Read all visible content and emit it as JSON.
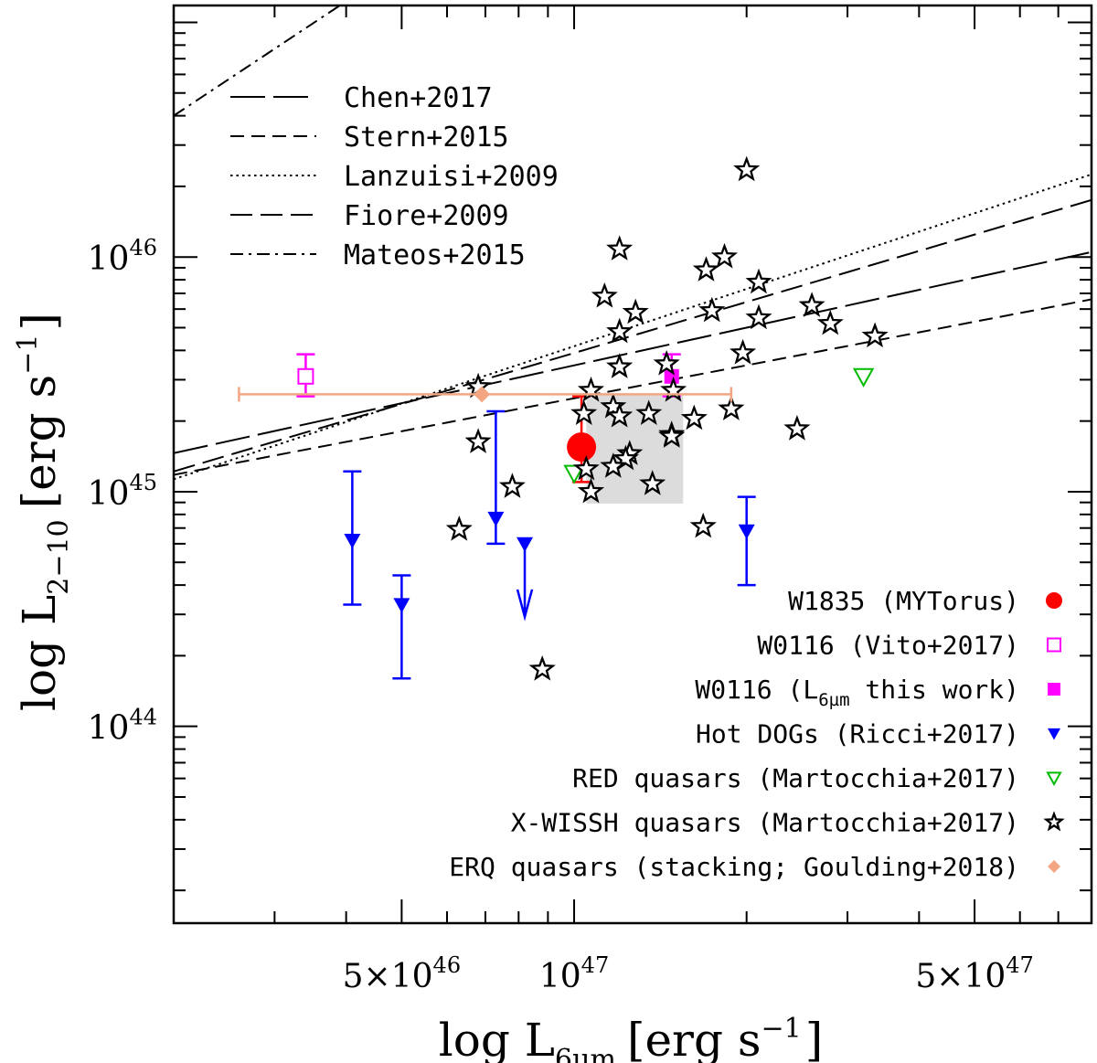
{
  "chart_data": {
    "type": "scatter",
    "title": "",
    "xlabel_main": "log L",
    "xlabel_sub": "6µm",
    "xlabel_unit": "[erg s",
    "xlabel_sup": "−1",
    "xlabel_close": "]",
    "ylabel_main": "log L",
    "ylabel_sub": "2−10",
    "ylabel_unit": "[erg s",
    "ylabel_sup": "−1",
    "ylabel_close": "]",
    "xscale": "log",
    "yscale": "log",
    "xlim": [
      2e+46,
      8e+47
    ],
    "ylim": [
      1.45e+43,
      1.18e+47
    ],
    "x_ticklabels": [
      {
        "value": 5e+46,
        "mant": "5×10",
        "exp": "46"
      },
      {
        "value": 1e+47,
        "mant": "10",
        "exp": "47"
      },
      {
        "value": 5e+47,
        "mant": "5×10",
        "exp": "47"
      }
    ],
    "y_ticklabels": [
      {
        "value": 1e+44,
        "mant": "10",
        "exp": "44"
      },
      {
        "value": 1e+45,
        "mant": "10",
        "exp": "45"
      },
      {
        "value": 1e+46,
        "mant": "10",
        "exp": "46"
      }
    ],
    "relations": [
      {
        "name": "Chen+2017",
        "dash": "long",
        "points": [
          [
            2e+46,
            1.46e+45
          ],
          [
            8e+47,
            1.05e+46
          ]
        ]
      },
      {
        "name": "Stern+2015",
        "dash": "short",
        "points": [
          [
            2e+46,
            1.18e+45
          ],
          [
            8e+47,
            6.6e+45
          ]
        ]
      },
      {
        "name": "Lanzuisi+2009",
        "dash": "dotted",
        "points": [
          [
            2e+46,
            1.13e+45
          ],
          [
            8e+47,
            2.25e+46
          ]
        ]
      },
      {
        "name": "Fiore+2009",
        "dash": "medium",
        "points": [
          [
            2e+46,
            1.22e+45
          ],
          [
            8e+47,
            1.75e+46
          ]
        ]
      },
      {
        "name": "Mateos+2015",
        "dash": "dashdot",
        "points": [
          [
            2e+46,
            4e+46
          ],
          [
            3.9e+46,
            1.18e+47
          ]
        ]
      }
    ],
    "shaded_region": {
      "x": [
        1.05e+47,
        1.55e+47
      ],
      "y": [
        8.9e+44,
        2.6e+45
      ]
    },
    "series": [
      {
        "name": "W1835 (MYTorus)",
        "marker": "filled-circle",
        "color": "#ff0000",
        "points": [
          {
            "x": 1.03e+47,
            "y": 1.55e+45,
            "ylo": 1.1e+45,
            "yhi": 2.55e+45
          }
        ]
      },
      {
        "name": "W0116 (Vito+2017)",
        "marker": "open-square",
        "color": "#ff00ff",
        "points": [
          {
            "x": 3.4e+46,
            "y": 3.1e+45,
            "ylo": 2.55e+45,
            "yhi": 3.85e+45
          }
        ]
      },
      {
        "name": "W0116 (L6µm this work)",
        "marker": "filled-square",
        "color": "#ff00ff",
        "points": [
          {
            "x": 1.48e+47,
            "y": 3.1e+45,
            "ylo": 2.55e+45,
            "yhi": 3.85e+45
          }
        ]
      },
      {
        "name": "Hot DOGs (Ricci+2017)",
        "marker": "filled-triangle-down",
        "color": "#0000ff",
        "points": [
          {
            "x": 4.1e+46,
            "y": 6.2e+44,
            "ylo": 3.3e+44,
            "yhi": 1.22e+45
          },
          {
            "x": 5e+46,
            "y": 3.3e+44,
            "ylo": 1.6e+44,
            "yhi": 4.4e+44
          },
          {
            "x": 7.3e+46,
            "y": 7.7e+44,
            "ylo": 6e+44,
            "yhi": 2.2e+45
          },
          {
            "x": 8.2e+46,
            "y": 6e+44,
            "upper_limit": true
          },
          {
            "x": 2e+47,
            "y": 6.8e+44,
            "ylo": 4e+44,
            "yhi": 9.5e+44
          }
        ]
      },
      {
        "name": "RED quasars (Martocchia+2017)",
        "marker": "open-triangle-down",
        "color": "#00bb00",
        "points": [
          {
            "x": 1e+47,
            "y": 1.2e+45
          },
          {
            "x": 3.2e+47,
            "y": 3.1e+45
          }
        ]
      },
      {
        "name": "X-WISSH quasars (Martocchia+2017)",
        "marker": "open-star",
        "color": "#000000",
        "points": [
          {
            "x": 2e+47,
            "y": 2.35e+46
          },
          {
            "x": 1.2e+47,
            "y": 1.08e+46
          },
          {
            "x": 1.83e+47,
            "y": 1e+46
          },
          {
            "x": 1.7e+47,
            "y": 8.8e+45
          },
          {
            "x": 2.1e+47,
            "y": 7.8e+45
          },
          {
            "x": 1.13e+47,
            "y": 6.8e+45
          },
          {
            "x": 1.28e+47,
            "y": 5.8e+45
          },
          {
            "x": 1.74e+47,
            "y": 5.9e+45
          },
          {
            "x": 2.1e+47,
            "y": 5.5e+45
          },
          {
            "x": 2.6e+47,
            "y": 6.2e+45
          },
          {
            "x": 2.8e+47,
            "y": 5.2e+45
          },
          {
            "x": 1.2e+47,
            "y": 4.8e+45
          },
          {
            "x": 3.35e+47,
            "y": 4.6e+45
          },
          {
            "x": 1.97e+47,
            "y": 3.9e+45
          },
          {
            "x": 1.2e+47,
            "y": 3.4e+45
          },
          {
            "x": 1.45e+47,
            "y": 3.5e+45
          },
          {
            "x": 6.8e+46,
            "y": 2.8e+45
          },
          {
            "x": 1.07e+47,
            "y": 2.7e+45
          },
          {
            "x": 1.49e+47,
            "y": 2.7e+45
          },
          {
            "x": 1.17e+47,
            "y": 2.3e+45
          },
          {
            "x": 1.04e+47,
            "y": 2.15e+45
          },
          {
            "x": 1.2e+47,
            "y": 2.1e+45
          },
          {
            "x": 1.35e+47,
            "y": 2.15e+45
          },
          {
            "x": 1.62e+47,
            "y": 2.05e+45
          },
          {
            "x": 1.88e+47,
            "y": 2.25e+45
          },
          {
            "x": 2.45e+47,
            "y": 1.85e+45
          },
          {
            "x": 1.48e+47,
            "y": 1.75e+45
          },
          {
            "x": 1.48e+47,
            "y": 1.72e+45
          },
          {
            "x": 6.8e+46,
            "y": 1.63e+45
          },
          {
            "x": 1.25e+47,
            "y": 1.45e+45
          },
          {
            "x": 1.23e+47,
            "y": 1.38e+45
          },
          {
            "x": 1.17e+47,
            "y": 1.28e+45
          },
          {
            "x": 1.05e+47,
            "y": 1.25e+45
          },
          {
            "x": 1.37e+47,
            "y": 1.08e+45
          },
          {
            "x": 7.8e+46,
            "y": 1.05e+45
          },
          {
            "x": 1.07e+47,
            "y": 1e+45
          },
          {
            "x": 6.3e+46,
            "y": 6.9e+44
          },
          {
            "x": 1.68e+47,
            "y": 7.1e+44
          },
          {
            "x": 8.8e+46,
            "y": 1.75e+44
          }
        ]
      },
      {
        "name": "ERQ quasars (stacking; Goulding+2018)",
        "marker": "filled-diamond",
        "color": "#f4a582",
        "points": [
          {
            "x": 6.9e+46,
            "y": 2.6e+45,
            "xlo": 2.6e+46,
            "xhi": 1.88e+47
          }
        ]
      }
    ],
    "legend_lines": {
      "placement": "top-left",
      "entries": [
        "Chen+2017",
        "Stern+2015",
        "Lanzuisi+2009",
        "Fiore+2009",
        "Mateos+2015"
      ]
    },
    "legend_markers": {
      "placement": "bottom-right",
      "entries": [
        {
          "text": "W1835 (MYTorus)",
          "series": 0
        },
        {
          "text": "W0116 (Vito+2017)",
          "series": 1
        },
        {
          "pre": "W0116 (L",
          "sub": "6µm",
          "post": " this work)",
          "series": 2
        },
        {
          "text": "Hot DOGs (Ricci+2017)",
          "series": 3
        },
        {
          "text": "RED quasars (Martocchia+2017)",
          "series": 4
        },
        {
          "text": "X-WISSH quasars (Martocchia+2017)",
          "series": 5
        },
        {
          "text": "ERQ quasars (stacking; Goulding+2018)",
          "series": 6
        }
      ]
    }
  }
}
